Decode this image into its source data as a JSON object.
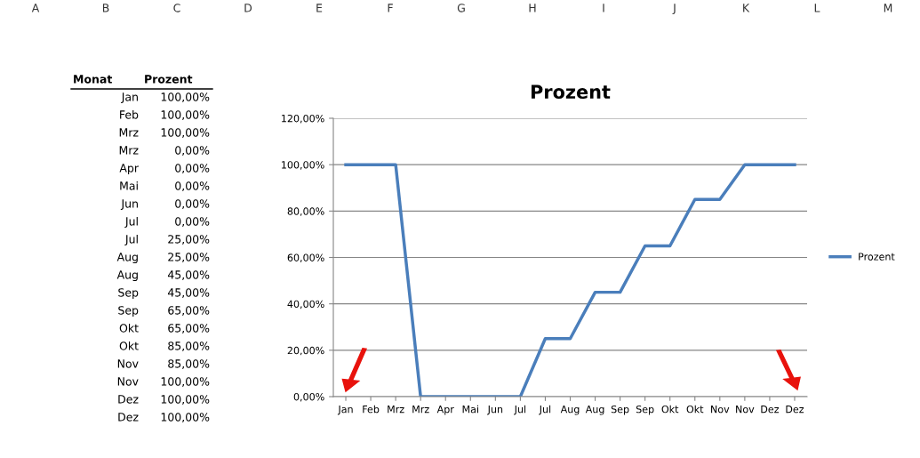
{
  "chart_data": {
    "type": "line",
    "title": "Prozent",
    "categories": [
      "Jan",
      "Feb",
      "Mrz",
      "Mrz",
      "Apr",
      "Mai",
      "Jun",
      "Jul",
      "Jul",
      "Aug",
      "Aug",
      "Sep",
      "Sep",
      "Okt",
      "Okt",
      "Nov",
      "Nov",
      "Dez",
      "Dez"
    ],
    "series": [
      {
        "name": "Prozent",
        "color": "#4a7ebb",
        "values": [
          100,
          100,
          100,
          0,
          0,
          0,
          0,
          0,
          25,
          25,
          45,
          45,
          65,
          65,
          85,
          85,
          100,
          100,
          100
        ]
      }
    ],
    "ylim": [
      0,
      120
    ],
    "yticks": [
      {
        "value": 0,
        "label": "0,00%"
      },
      {
        "value": 20,
        "label": "20,00%"
      },
      {
        "value": 40,
        "label": "40,00%"
      },
      {
        "value": 60,
        "label": "60,00%"
      },
      {
        "value": 80,
        "label": "80,00%"
      },
      {
        "value": 100,
        "label": "100,00%"
      },
      {
        "value": 120,
        "label": "120,00%"
      }
    ],
    "grid": "y",
    "legend": "right",
    "marker": "none",
    "line_style": "solid",
    "annotations": [
      "Monat",
      "Prozent",
      "Jan",
      "Feb",
      "Mrz",
      "Mrz",
      "Apr",
      "Mai",
      "Jun",
      "Jul",
      "Jul",
      "Aug",
      "Aug",
      "Sep",
      "Sep",
      "Okt",
      "Okt",
      "Nov",
      "Nov",
      "Dez",
      "Dez",
      "100,00%",
      "100,00%",
      "100,00%",
      "0,00%",
      "0,00%",
      "0,00%",
      "0,00%",
      "0,00%",
      "25,00%",
      "25,00%",
      "45,00%",
      "45,00%",
      "65,00%",
      "65,00%",
      "85,00%",
      "85,00%",
      "100,00%",
      "100,00%",
      "100,00%",
      "A",
      "B",
      "C",
      "D",
      "E",
      "F",
      "G",
      "H",
      "I",
      "J",
      "K",
      "L",
      "M"
    ]
  }
}
